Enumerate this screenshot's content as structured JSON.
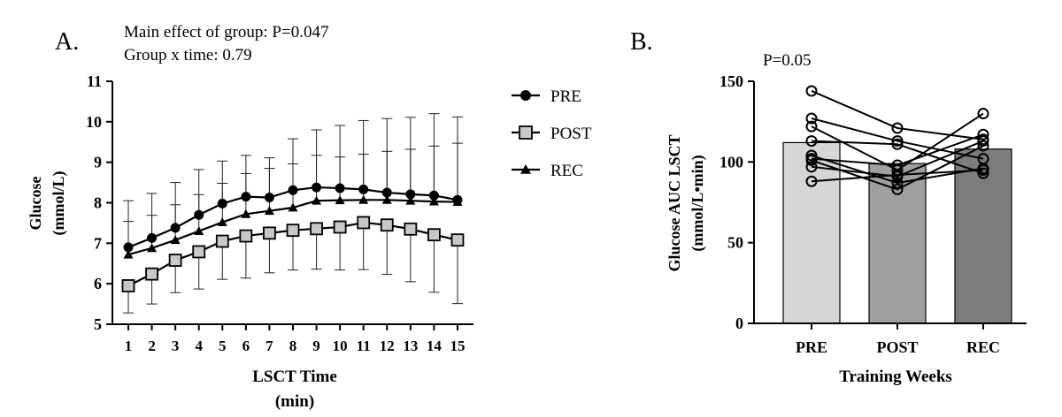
{
  "chart_data": [
    {
      "type": "line",
      "panel_label": "A.",
      "annotations": [
        "Main effect of group: P=0.047",
        "Group x time: 0.79"
      ],
      "xlabel_line1": "LSCT Time",
      "xlabel_line2": "(min)",
      "ylabel_line1": "Glucose",
      "ylabel_line2": "(mmol/L)",
      "ylim": [
        5,
        11
      ],
      "yticks": [
        5,
        6,
        7,
        8,
        9,
        10,
        11
      ],
      "x": [
        1,
        2,
        3,
        4,
        5,
        6,
        7,
        8,
        9,
        10,
        11,
        12,
        13,
        14,
        15
      ],
      "legend_position": "right",
      "series": [
        {
          "name": "PRE",
          "marker": "circle",
          "values": [
            6.9,
            7.13,
            7.38,
            7.7,
            7.98,
            8.15,
            8.13,
            8.31,
            8.38,
            8.36,
            8.33,
            8.25,
            8.21,
            8.18,
            8.07
          ],
          "error_up": [
            1.15,
            1.1,
            1.12,
            1.12,
            1.05,
            1.02,
            0.98,
            1.27,
            1.42,
            1.55,
            1.7,
            1.83,
            1.9,
            2.02,
            2.05
          ],
          "error_down": [
            0,
            0,
            0,
            0,
            0,
            0,
            0,
            0,
            0,
            0,
            0,
            0,
            0,
            0,
            0
          ]
        },
        {
          "name": "POST",
          "marker": "square",
          "values": [
            5.95,
            6.24,
            6.58,
            6.79,
            7.05,
            7.18,
            7.25,
            7.32,
            7.36,
            7.4,
            7.51,
            7.45,
            7.35,
            7.21,
            7.08
          ],
          "error_up": [
            0,
            0,
            0,
            0,
            0,
            0,
            0,
            0,
            0,
            0,
            0,
            0,
            0,
            0,
            0
          ],
          "error_down": [
            0.67,
            0.74,
            0.8,
            0.92,
            0.94,
            1.04,
            0.98,
            0.98,
            1.0,
            1.06,
            1.16,
            1.22,
            1.3,
            1.42,
            1.57
          ]
        },
        {
          "name": "REC",
          "marker": "triangle",
          "values": [
            6.72,
            6.88,
            7.08,
            7.3,
            7.52,
            7.72,
            7.8,
            7.88,
            8.05,
            8.06,
            8.07,
            8.07,
            8.05,
            8.03,
            8.02
          ],
          "error_up": [
            0.82,
            0.81,
            0.87,
            0.9,
            0.96,
            1.0,
            1.05,
            1.08,
            1.12,
            1.07,
            1.13,
            1.2,
            1.27,
            1.37,
            1.45
          ],
          "error_down": [
            0,
            0,
            0,
            0,
            0,
            0,
            0,
            0,
            0,
            0,
            0,
            0,
            0,
            0,
            0
          ]
        }
      ]
    },
    {
      "type": "bar",
      "panel_label": "B.",
      "annotations": [
        "P=0.05"
      ],
      "categories": [
        "PRE",
        "POST",
        "REC"
      ],
      "values": [
        112,
        99,
        108
      ],
      "bar_colors": [
        "#d6d6d6",
        "#9f9f9f",
        "#7d7d7d"
      ],
      "xlabel": "Training Weeks",
      "ylabel_line1": "Glucose AUC LSCT",
      "ylabel_line2": "(mmol/L•min)",
      "ylim": [
        0,
        150
      ],
      "yticks": [
        0,
        50,
        100,
        150
      ],
      "individuals": [
        [
          144,
          121,
          114
        ],
        [
          127,
          113,
          102
        ],
        [
          122,
          95,
          130
        ],
        [
          113,
          111,
          93
        ],
        [
          104,
          87,
          96
        ],
        [
          102,
          98,
          117
        ],
        [
          101,
          83,
          110
        ],
        [
          97,
          91,
          113
        ],
        [
          88,
          92,
          95
        ]
      ]
    }
  ]
}
